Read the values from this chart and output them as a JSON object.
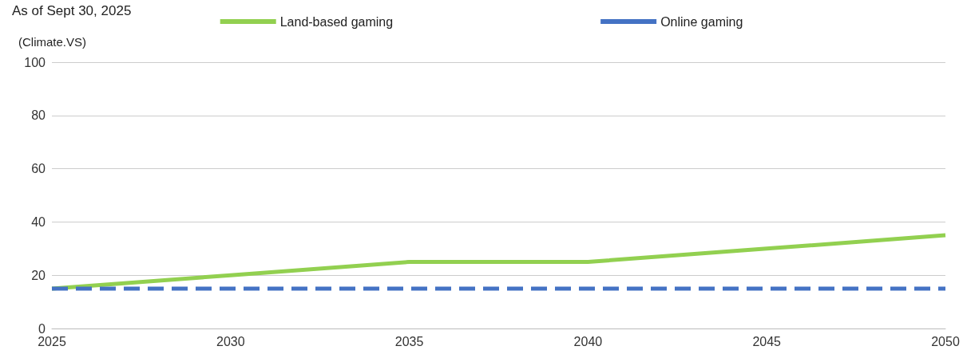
{
  "chart_data": {
    "type": "line",
    "title": "As of Sept 30, 2025",
    "ylabel": "(Climate.VS)",
    "x": [
      2025,
      2030,
      2035,
      2040,
      2045,
      2050
    ],
    "series": [
      {
        "name": "Land-based gaming",
        "color": "#92d050",
        "values": [
          15,
          20,
          25,
          25,
          30,
          35
        ]
      },
      {
        "name": "Online gaming",
        "color": "#4472c4",
        "values": [
          15,
          15,
          15,
          15,
          15,
          15
        ],
        "line_style": "dashed"
      }
    ],
    "xlim": [
      2025,
      2050
    ],
    "xticks": [
      2025,
      2030,
      2035,
      2040,
      2045,
      2050
    ],
    "ylim": [
      0,
      100
    ],
    "yticks": [
      0,
      20,
      40,
      60,
      80,
      100
    ],
    "grid": "y",
    "legend": "top",
    "marker": "none"
  }
}
